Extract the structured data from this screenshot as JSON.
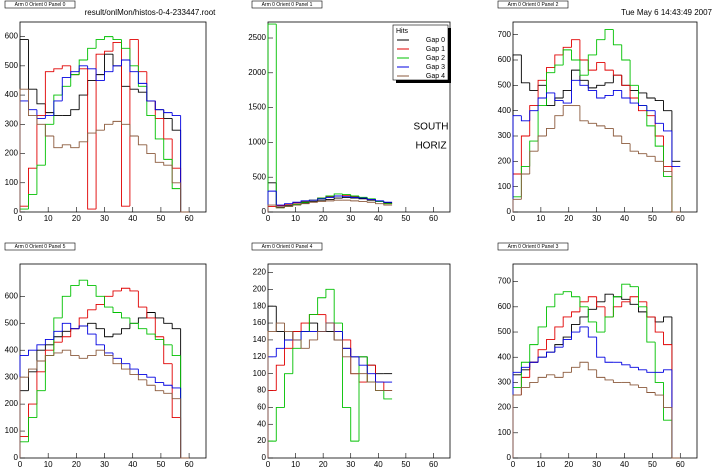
{
  "canvas_title": "result/onlMon/histos-0-4-233447.root",
  "timestamp": "Tue May  6 14:43:49 2007",
  "chart_data": [
    {
      "type": "histogram",
      "title": "Arm 0 Orient 0 Panel 0",
      "bins": [
        0,
        3,
        6,
        9,
        12,
        15,
        18,
        21,
        24,
        27,
        30,
        33,
        36,
        39,
        42,
        45,
        48,
        51,
        54,
        57,
        60
      ],
      "xlim": [
        0,
        66
      ],
      "xticks": [
        0,
        10,
        20,
        30,
        40,
        50,
        60
      ],
      "ylim": [
        0,
        650
      ],
      "yticks": [
        0,
        100,
        200,
        300,
        400,
        500,
        600
      ],
      "series": [
        {
          "color": "#000000",
          "values": [
            590,
            420,
            370,
            340,
            330,
            330,
            350,
            400,
            450,
            470,
            540,
            500,
            430,
            420,
            410,
            380,
            350,
            320,
            280,
            0
          ]
        },
        {
          "color": "#e00000",
          "values": [
            20,
            150,
            330,
            480,
            490,
            500,
            470,
            490,
            10,
            540,
            550,
            580,
            20,
            590,
            480,
            380,
            320,
            250,
            150,
            0
          ]
        },
        {
          "color": "#00c000",
          "values": [
            10,
            60,
            160,
            300,
            400,
            430,
            470,
            520,
            560,
            590,
            600,
            590,
            560,
            500,
            430,
            330,
            250,
            180,
            80,
            0
          ]
        },
        {
          "color": "#0000e0",
          "values": [
            380,
            350,
            320,
            330,
            380,
            460,
            480,
            500,
            490,
            450,
            480,
            500,
            520,
            480,
            440,
            380,
            350,
            340,
            330,
            0
          ]
        },
        {
          "color": "#8b5a3c",
          "values": [
            420,
            330,
            300,
            260,
            220,
            230,
            220,
            240,
            270,
            280,
            300,
            310,
            300,
            260,
            230,
            200,
            170,
            160,
            100,
            0
          ]
        }
      ]
    },
    {
      "type": "histogram",
      "title": "Arm 0 Orient 0 Panel 1",
      "bins": [
        0,
        3,
        6,
        9,
        12,
        15,
        18,
        21,
        24,
        27,
        30,
        33,
        36,
        39,
        42,
        45
      ],
      "xlim": [
        0,
        66
      ],
      "xticks": [
        0,
        10,
        20,
        30,
        40,
        50,
        60
      ],
      "ylim": [
        0,
        2730
      ],
      "yticks": [
        0,
        500,
        1000,
        1500,
        2000,
        2500
      ],
      "legend_title": "Hits",
      "annotations": [
        "SOUTH",
        "HORIZ"
      ],
      "series": [
        {
          "name": "Gap 0",
          "color": "#000000",
          "values": [
            420,
            70,
            90,
            110,
            130,
            150,
            170,
            180,
            200,
            210,
            200,
            190,
            170,
            150,
            130
          ]
        },
        {
          "name": "Gap 1",
          "color": "#e00000",
          "values": [
            80,
            90,
            110,
            130,
            150,
            170,
            200,
            220,
            230,
            240,
            220,
            200,
            180,
            150,
            120
          ]
        },
        {
          "name": "Gap 2",
          "color": "#00c000",
          "values": [
            2700,
            60,
            80,
            110,
            140,
            170,
            200,
            230,
            260,
            250,
            230,
            210,
            190,
            150,
            120
          ]
        },
        {
          "name": "Gap 3",
          "color": "#0000e0",
          "values": [
            300,
            100,
            120,
            140,
            160,
            170,
            190,
            210,
            230,
            220,
            210,
            200,
            180,
            160,
            140
          ]
        },
        {
          "name": "Gap 4",
          "color": "#8b5a3c",
          "values": [
            100,
            60,
            80,
            100,
            120,
            140,
            150,
            160,
            170,
            170,
            160,
            150,
            140,
            120,
            100
          ]
        }
      ]
    },
    {
      "type": "histogram",
      "title": "Arm 0 Orient 0 Panel 2",
      "bins": [
        0,
        3,
        6,
        9,
        12,
        15,
        18,
        21,
        24,
        27,
        30,
        33,
        36,
        39,
        42,
        45,
        48,
        51,
        54,
        57,
        60
      ],
      "xlim": [
        0,
        66
      ],
      "xticks": [
        0,
        10,
        20,
        30,
        40,
        50,
        60
      ],
      "ylim": [
        0,
        750
      ],
      "yticks": [
        0,
        100,
        200,
        300,
        400,
        500,
        600,
        700
      ],
      "series": [
        {
          "color": "#000000",
          "values": [
            620,
            510,
            480,
            500,
            420,
            450,
            480,
            560,
            520,
            490,
            500,
            510,
            540,
            500,
            480,
            470,
            450,
            440,
            400,
            200
          ]
        },
        {
          "color": "#e00000",
          "values": [
            150,
            300,
            420,
            520,
            570,
            620,
            650,
            680,
            600,
            560,
            590,
            560,
            540,
            500,
            450,
            400,
            380,
            300,
            180,
            0
          ]
        },
        {
          "color": "#00c000",
          "values": [
            60,
            180,
            280,
            420,
            550,
            580,
            640,
            600,
            540,
            620,
            680,
            720,
            660,
            600,
            500,
            420,
            340,
            260,
            140,
            0
          ]
        },
        {
          "color": "#0000e0",
          "values": [
            380,
            360,
            400,
            450,
            470,
            440,
            430,
            520,
            500,
            480,
            450,
            460,
            480,
            450,
            430,
            420,
            400,
            350,
            320,
            180
          ]
        },
        {
          "color": "#8b5a3c",
          "values": [
            50,
            150,
            240,
            300,
            330,
            380,
            420,
            420,
            360,
            350,
            340,
            330,
            300,
            270,
            240,
            230,
            220,
            200,
            160,
            0
          ]
        }
      ]
    },
    {
      "type": "histogram",
      "title": "Arm 0 Orient 0 Panel 5",
      "bins": [
        0,
        3,
        6,
        9,
        12,
        15,
        18,
        21,
        24,
        27,
        30,
        33,
        36,
        39,
        42,
        45,
        48,
        51,
        54,
        57,
        60
      ],
      "xlim": [
        0,
        66
      ],
      "xticks": [
        0,
        10,
        20,
        30,
        40,
        50,
        60
      ],
      "ylim": [
        0,
        720
      ],
      "yticks": [
        0,
        100,
        200,
        300,
        400,
        500,
        600
      ],
      "series": [
        {
          "color": "#000000",
          "values": [
            250,
            320,
            400,
            420,
            450,
            470,
            480,
            490,
            500,
            480,
            450,
            460,
            480,
            500,
            520,
            540,
            520,
            500,
            480,
            0
          ]
        },
        {
          "color": "#e00000",
          "values": [
            80,
            200,
            320,
            400,
            430,
            450,
            480,
            520,
            550,
            570,
            600,
            620,
            630,
            620,
            560,
            520,
            450,
            350,
            150,
            0
          ]
        },
        {
          "color": "#00c000",
          "values": [
            60,
            150,
            250,
            380,
            520,
            600,
            640,
            660,
            640,
            600,
            560,
            540,
            520,
            500,
            480,
            460,
            440,
            420,
            380,
            0
          ]
        },
        {
          "color": "#0000e0",
          "values": [
            380,
            400,
            420,
            440,
            470,
            500,
            480,
            490,
            460,
            420,
            390,
            370,
            350,
            330,
            310,
            300,
            280,
            270,
            260,
            0
          ]
        },
        {
          "color": "#8b5a3c",
          "values": [
            300,
            330,
            360,
            380,
            390,
            400,
            380,
            370,
            380,
            400,
            380,
            350,
            330,
            310,
            290,
            270,
            250,
            240,
            220,
            0
          ]
        }
      ]
    },
    {
      "type": "histogram",
      "title": "Arm 0 Orient 0 Panel 4",
      "bins": [
        0,
        3,
        6,
        9,
        12,
        15,
        18,
        21,
        24,
        27,
        30,
        33,
        36,
        39,
        42,
        45
      ],
      "xlim": [
        0,
        66
      ],
      "xticks": [
        0,
        10,
        20,
        30,
        40,
        50,
        60
      ],
      "ylim": [
        0,
        230
      ],
      "yticks": [
        0,
        20,
        40,
        60,
        80,
        100,
        120,
        140,
        160,
        180,
        200,
        220
      ],
      "series": [
        {
          "color": "#000000",
          "values": [
            180,
            150,
            140,
            150,
            150,
            160,
            150,
            150,
            140,
            130,
            120,
            120,
            110,
            100,
            100
          ]
        },
        {
          "color": "#e00000",
          "values": [
            80,
            110,
            130,
            150,
            160,
            170,
            170,
            160,
            150,
            140,
            100,
            90,
            110,
            90,
            80
          ]
        },
        {
          "color": "#00c000",
          "values": [
            20,
            60,
            100,
            130,
            150,
            170,
            190,
            200,
            160,
            60,
            20,
            120,
            90,
            80,
            70
          ]
        },
        {
          "color": "#0000e0",
          "values": [
            120,
            130,
            140,
            140,
            150,
            150,
            150,
            160,
            150,
            130,
            120,
            110,
            100,
            90,
            90
          ]
        },
        {
          "color": "#8b5a3c",
          "values": [
            150,
            160,
            150,
            140,
            130,
            140,
            150,
            160,
            140,
            120,
            100,
            100,
            90,
            80,
            80
          ]
        }
      ]
    },
    {
      "type": "histogram",
      "title": "Arm 0 Orient 0 Panel 3",
      "bins": [
        0,
        3,
        6,
        9,
        12,
        15,
        18,
        21,
        24,
        27,
        30,
        33,
        36,
        39,
        42,
        45,
        48,
        51,
        54,
        57,
        60
      ],
      "xlim": [
        0,
        66
      ],
      "xticks": [
        0,
        10,
        20,
        30,
        40,
        50,
        60
      ],
      "ylim": [
        0,
        770
      ],
      "yticks": [
        0,
        100,
        200,
        300,
        400,
        500,
        600,
        700
      ],
      "series": [
        {
          "color": "#000000",
          "values": [
            330,
            350,
            380,
            400,
            420,
            450,
            480,
            530,
            560,
            590,
            620,
            650,
            640,
            630,
            610,
            580,
            560,
            540,
            560,
            0
          ]
        },
        {
          "color": "#e00000",
          "values": [
            250,
            320,
            380,
            430,
            470,
            520,
            560,
            580,
            620,
            640,
            600,
            560,
            600,
            620,
            640,
            620,
            560,
            500,
            450,
            0
          ]
        },
        {
          "color": "#00c000",
          "values": [
            280,
            380,
            450,
            520,
            600,
            650,
            660,
            640,
            600,
            540,
            500,
            560,
            640,
            690,
            680,
            600,
            460,
            300,
            150,
            0
          ]
        },
        {
          "color": "#0000e0",
          "values": [
            340,
            360,
            380,
            400,
            420,
            440,
            470,
            500,
            520,
            480,
            400,
            380,
            380,
            370,
            360,
            350,
            340,
            340,
            350,
            0
          ]
        },
        {
          "color": "#8b5a3c",
          "values": [
            250,
            280,
            300,
            320,
            330,
            320,
            340,
            360,
            380,
            350,
            320,
            310,
            300,
            300,
            290,
            280,
            260,
            250,
            200,
            0
          ]
        }
      ]
    }
  ]
}
